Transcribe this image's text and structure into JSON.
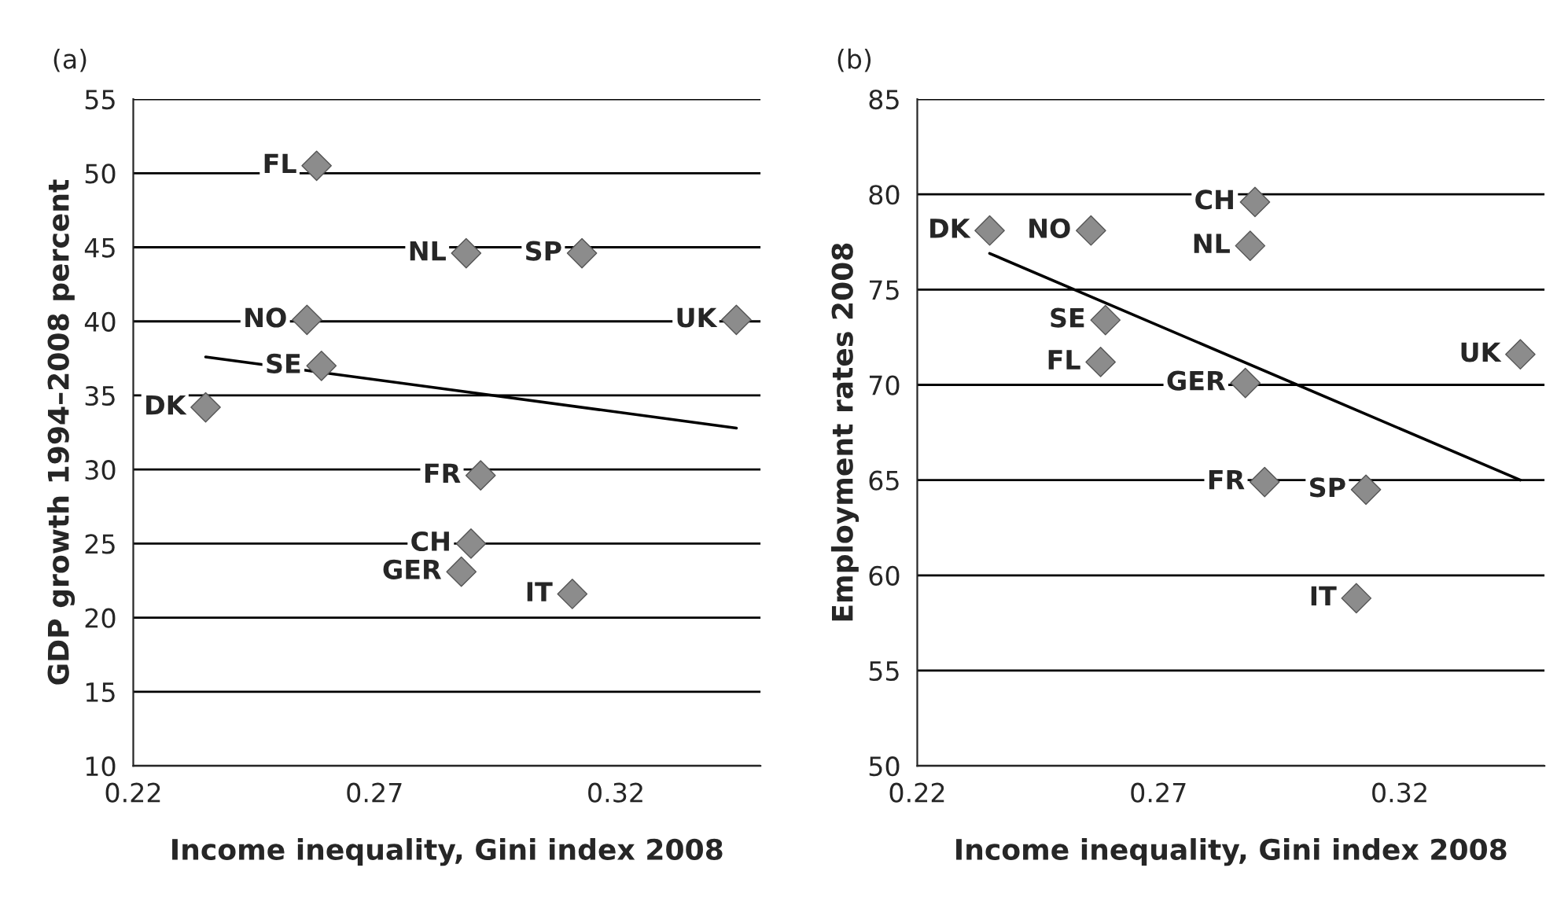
{
  "chart_data": [
    {
      "type": "scatter",
      "title": "(a)",
      "xlabel": "Income inequality, Gini index 2008",
      "ylabel": "GDP growth 1994–2008 percent",
      "xlim": [
        0.22,
        0.35
      ],
      "xticks": [
        0.22,
        0.27,
        0.32
      ],
      "ylim": [
        10,
        55
      ],
      "yticks": [
        10,
        15,
        20,
        25,
        30,
        35,
        40,
        45,
        50,
        55
      ],
      "grid": "y",
      "legend": false,
      "series": [
        {
          "color": "#8c8c8c",
          "marker": "diamond",
          "x": [
            0.258,
            0.289,
            0.313,
            0.345,
            0.256,
            0.259,
            0.235,
            0.292,
            0.29,
            0.288,
            0.311
          ],
          "values": [
            50.5,
            44.6,
            44.6,
            40.1,
            40.1,
            37.0,
            34.2,
            29.6,
            25.0,
            23.1,
            21.6
          ]
        },
        {
          "type": "line",
          "color": "#000000",
          "x": [
            0.235,
            0.345
          ],
          "values": [
            37.6,
            32.8
          ]
        }
      ],
      "annotations": [
        {
          "text": "FL",
          "x": 0.258,
          "y": 50.5
        },
        {
          "text": "NL",
          "x": 0.289,
          "y": 44.6
        },
        {
          "text": "SP",
          "x": 0.313,
          "y": 44.6
        },
        {
          "text": "UK",
          "x": 0.345,
          "y": 40.1
        },
        {
          "text": "NO",
          "x": 0.256,
          "y": 40.1
        },
        {
          "text": "SE",
          "x": 0.259,
          "y": 37.0
        },
        {
          "text": "DK",
          "x": 0.235,
          "y": 34.2
        },
        {
          "text": "FR",
          "x": 0.292,
          "y": 29.6
        },
        {
          "text": "CH",
          "x": 0.29,
          "y": 25.0
        },
        {
          "text": "GER",
          "x": 0.288,
          "y": 23.1
        },
        {
          "text": "IT",
          "x": 0.311,
          "y": 21.6
        }
      ]
    },
    {
      "type": "scatter",
      "title": "(b)",
      "xlabel": "Income inequality, Gini index 2008",
      "ylabel": "Employment rates 2008",
      "xlim": [
        0.22,
        0.35
      ],
      "xticks": [
        0.22,
        0.27,
        0.32
      ],
      "ylim": [
        50,
        85
      ],
      "yticks": [
        50,
        55,
        60,
        65,
        70,
        75,
        80,
        85
      ],
      "grid": "y",
      "legend": false,
      "series": [
        {
          "color": "#8c8c8c",
          "marker": "diamond",
          "x": [
            0.235,
            0.256,
            0.29,
            0.289,
            0.259,
            0.258,
            0.288,
            0.292,
            0.313,
            0.311,
            0.345
          ],
          "values": [
            78.1,
            78.1,
            79.6,
            77.3,
            73.4,
            71.2,
            70.1,
            64.9,
            64.5,
            58.8,
            71.6
          ]
        },
        {
          "type": "line",
          "color": "#000000",
          "x": [
            0.235,
            0.345
          ],
          "values": [
            76.9,
            65.0
          ]
        }
      ],
      "annotations": [
        {
          "text": "DK",
          "x": 0.235,
          "y": 78.1
        },
        {
          "text": "NO",
          "x": 0.256,
          "y": 78.1
        },
        {
          "text": "CH",
          "x": 0.29,
          "y": 79.6
        },
        {
          "text": "NL",
          "x": 0.289,
          "y": 77.3
        },
        {
          "text": "SE",
          "x": 0.259,
          "y": 73.4
        },
        {
          "text": "FL",
          "x": 0.258,
          "y": 71.2
        },
        {
          "text": "GER",
          "x": 0.288,
          "y": 70.1
        },
        {
          "text": "FR",
          "x": 0.292,
          "y": 64.9
        },
        {
          "text": "SP",
          "x": 0.313,
          "y": 64.5
        },
        {
          "text": "IT",
          "x": 0.311,
          "y": 58.8
        },
        {
          "text": "UK",
          "x": 0.345,
          "y": 71.6
        }
      ]
    }
  ]
}
